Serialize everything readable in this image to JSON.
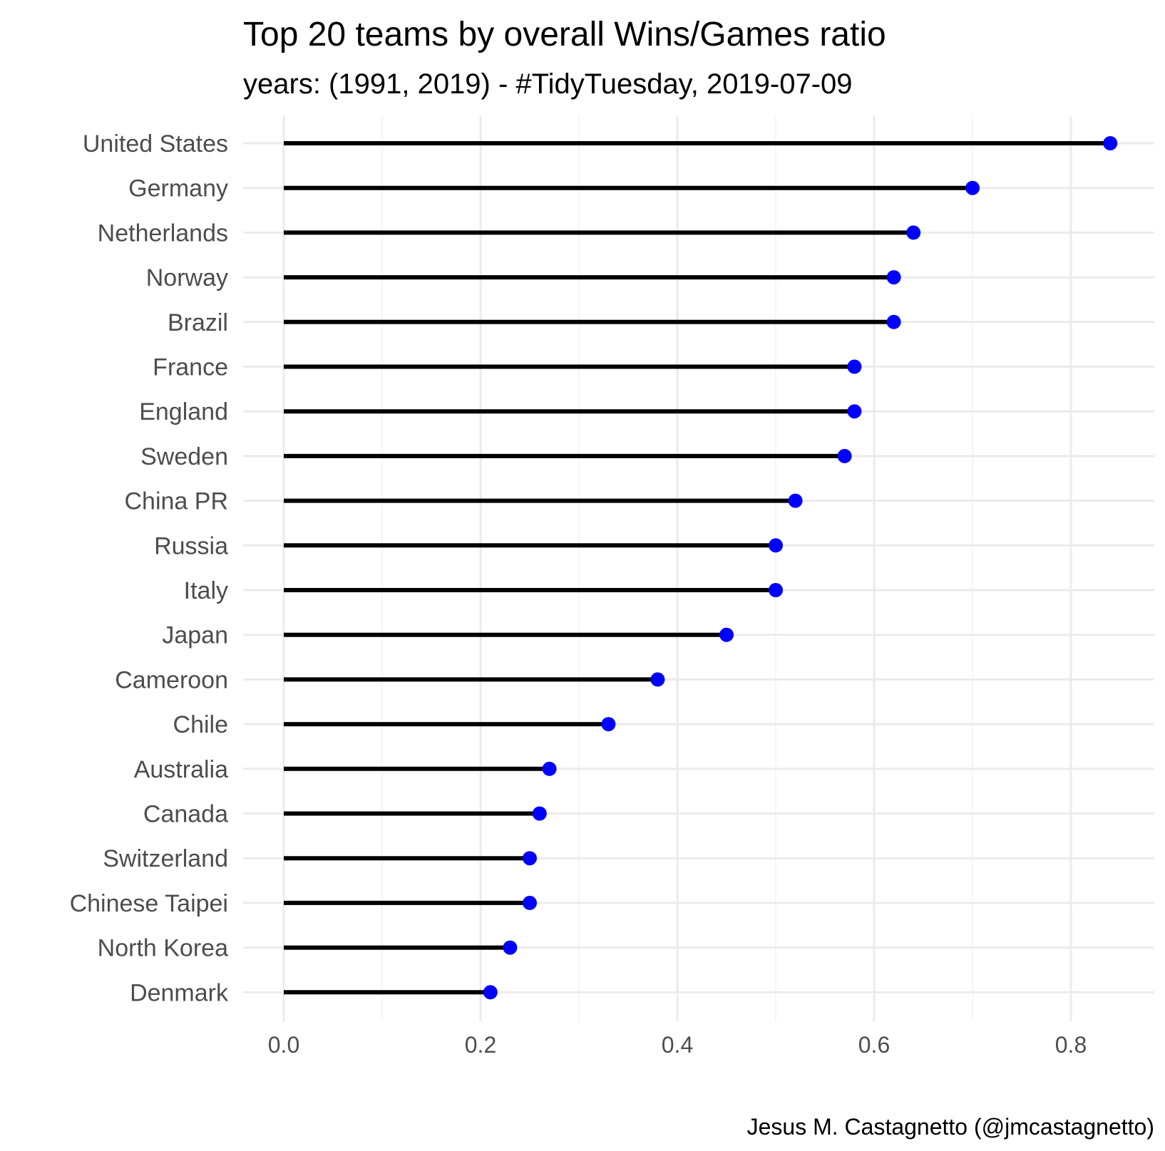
{
  "chart_data": {
    "type": "lollipop",
    "title": "Top 20 teams by overall Wins/Games ratio",
    "subtitle": "years: (1991, 2019) - #TidyTuesday, 2019-07-09",
    "caption": "Jesus M. Castagnetto (@jmcastagnetto)",
    "xlabel": "",
    "ylabel": "",
    "xlim": [
      0,
      0.86
    ],
    "xticks": [
      0.0,
      0.2,
      0.4,
      0.6,
      0.8
    ],
    "xtick_labels": [
      "0.0",
      "0.2",
      "0.4",
      "0.6",
      "0.8"
    ],
    "grid": true,
    "legend": "none",
    "point_color": "#0000ff",
    "stem_color": "#000000",
    "categories": [
      "United States",
      "Germany",
      "Netherlands",
      "Norway",
      "Brazil",
      "France",
      "England",
      "Sweden",
      "China PR",
      "Russia",
      "Italy",
      "Japan",
      "Cameroon",
      "Chile",
      "Australia",
      "Canada",
      "Switzerland",
      "Chinese Taipei",
      "North Korea",
      "Denmark"
    ],
    "values": [
      0.84,
      0.7,
      0.64,
      0.62,
      0.62,
      0.58,
      0.58,
      0.57,
      0.52,
      0.5,
      0.5,
      0.45,
      0.38,
      0.33,
      0.27,
      0.26,
      0.25,
      0.25,
      0.23,
      0.21
    ]
  }
}
